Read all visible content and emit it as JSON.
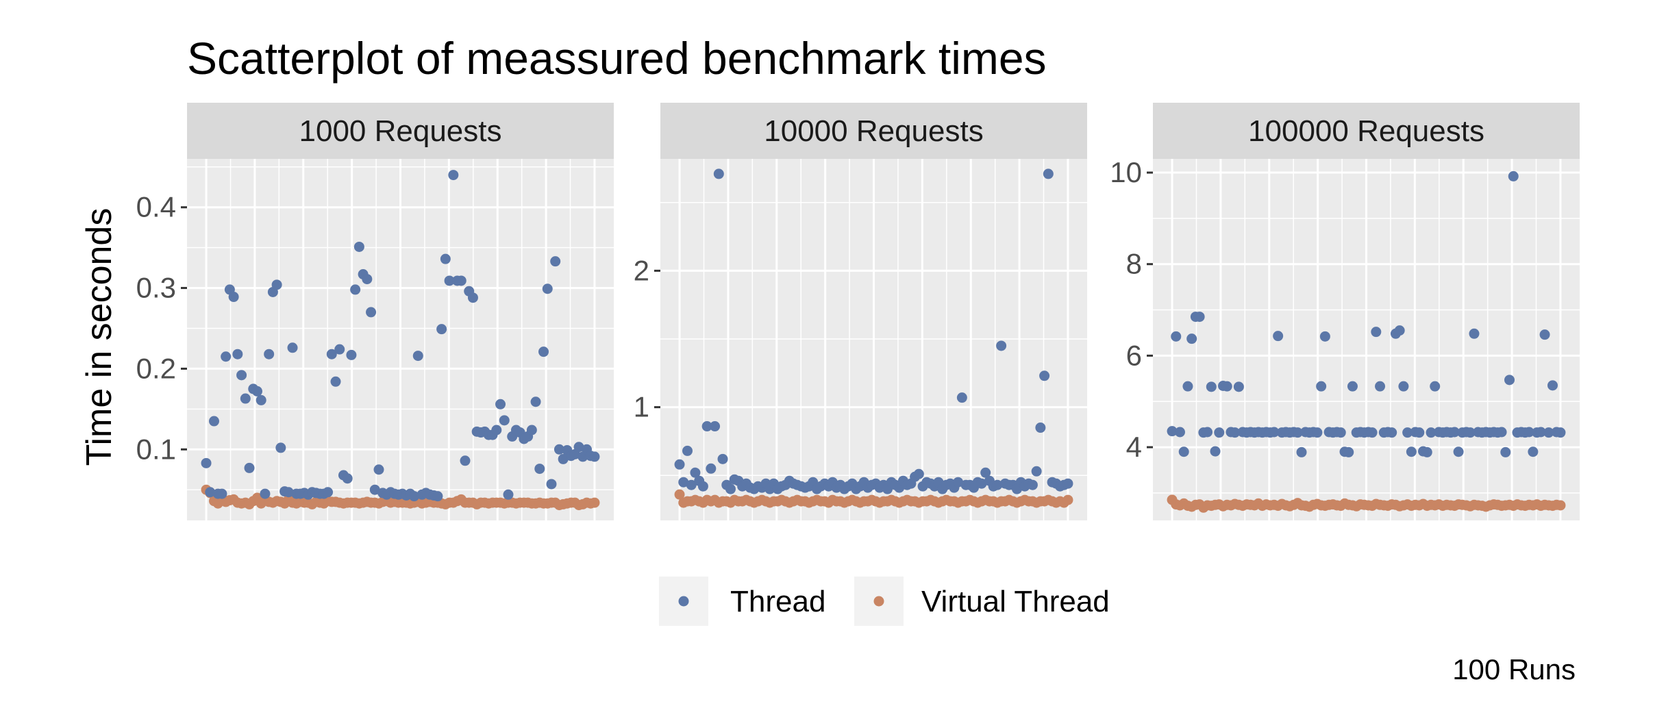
{
  "chart_data": {
    "type": "scatter",
    "title": "Scatterplot of meassured benchmark times",
    "ylabel": "Time in seconds",
    "xlabel": "",
    "caption": "100 Runs",
    "legend": {
      "placement": "bottom",
      "entries": [
        {
          "name": "Thread",
          "color": "#5b77a8"
        },
        {
          "name": "Virtual Thread",
          "color": "#c98563"
        }
      ]
    },
    "panels": [
      {
        "label": "1000 Requests",
        "ylim": [
          0.012,
          0.46
        ],
        "yticks": [
          0.1,
          0.2,
          0.3,
          0.4
        ],
        "ytick_labels": [
          "0.1",
          "0.2",
          "0.3",
          "0.4"
        ],
        "thread": [
          0.083,
          0.047,
          0.135,
          0.045,
          0.045,
          0.215,
          0.298,
          0.289,
          0.218,
          0.192,
          0.163,
          0.077,
          0.175,
          0.172,
          0.161,
          0.045,
          0.218,
          0.295,
          0.304,
          0.102,
          0.048,
          0.047,
          0.226,
          0.045,
          0.045,
          0.046,
          0.044,
          0.047,
          0.046,
          0.045,
          0.045,
          0.047,
          0.218,
          0.184,
          0.224,
          0.068,
          0.064,
          0.217,
          0.298,
          0.351,
          0.317,
          0.311,
          0.27,
          0.05,
          0.075,
          0.046,
          0.044,
          0.047,
          0.045,
          0.044,
          0.045,
          0.043,
          0.045,
          0.042,
          0.216,
          0.044,
          0.046,
          0.044,
          0.043,
          0.042,
          0.249,
          0.336,
          0.309,
          0.44,
          0.309,
          0.309,
          0.086,
          0.296,
          0.288,
          0.122,
          0.121,
          0.122,
          0.118,
          0.118,
          0.124,
          0.156,
          0.136,
          0.044,
          0.116,
          0.124,
          0.121,
          0.113,
          0.116,
          0.124,
          0.159,
          0.076,
          0.221,
          0.299,
          0.057,
          0.333,
          0.1,
          0.088,
          0.099,
          0.092,
          0.094,
          0.103,
          0.091,
          0.1,
          0.092,
          0.091
        ],
        "virtual": [
          0.05,
          0.046,
          0.036,
          0.033,
          0.04,
          0.035,
          0.037,
          0.038,
          0.034,
          0.033,
          0.034,
          0.032,
          0.036,
          0.04,
          0.033,
          0.038,
          0.035,
          0.034,
          0.036,
          0.035,
          0.033,
          0.038,
          0.034,
          0.033,
          0.035,
          0.034,
          0.034,
          0.032,
          0.035,
          0.034,
          0.033,
          0.036,
          0.035,
          0.035,
          0.034,
          0.033,
          0.034,
          0.034,
          0.034,
          0.033,
          0.034,
          0.035,
          0.034,
          0.034,
          0.033,
          0.035,
          0.036,
          0.034,
          0.035,
          0.034,
          0.034,
          0.034,
          0.033,
          0.034,
          0.035,
          0.033,
          0.034,
          0.035,
          0.034,
          0.034,
          0.033,
          0.032,
          0.034,
          0.034,
          0.036,
          0.038,
          0.034,
          0.034,
          0.034,
          0.032,
          0.034,
          0.034,
          0.033,
          0.034,
          0.034,
          0.034,
          0.033,
          0.034,
          0.034,
          0.033,
          0.034,
          0.034,
          0.034,
          0.033,
          0.033,
          0.034,
          0.033,
          0.033,
          0.034,
          0.034,
          0.031,
          0.032,
          0.033,
          0.034,
          0.034,
          0.031,
          0.032,
          0.034,
          0.033,
          0.034
        ]
      },
      {
        "label": "10000 Requests",
        "ylim": [
          0.17,
          2.82
        ],
        "yticks": [
          1,
          2
        ],
        "ytick_labels": [
          "1",
          "2"
        ],
        "thread": [
          0.58,
          0.45,
          0.68,
          0.43,
          0.52,
          0.46,
          0.42,
          0.86,
          0.55,
          0.86,
          2.71,
          0.62,
          0.43,
          0.4,
          0.47,
          0.46,
          0.42,
          0.44,
          0.41,
          0.4,
          0.42,
          0.41,
          0.44,
          0.4,
          0.44,
          0.4,
          0.42,
          0.43,
          0.46,
          0.44,
          0.43,
          0.42,
          0.41,
          0.42,
          0.45,
          0.4,
          0.42,
          0.44,
          0.42,
          0.45,
          0.41,
          0.43,
          0.4,
          0.42,
          0.44,
          0.4,
          0.42,
          0.45,
          0.41,
          0.43,
          0.44,
          0.41,
          0.43,
          0.4,
          0.45,
          0.43,
          0.41,
          0.46,
          0.43,
          0.44,
          0.49,
          0.51,
          0.42,
          0.45,
          0.44,
          0.42,
          0.45,
          0.4,
          0.43,
          0.44,
          0.41,
          0.45,
          1.07,
          0.43,
          0.43,
          0.41,
          0.45,
          0.44,
          0.52,
          0.46,
          0.42,
          0.43,
          1.45,
          0.44,
          0.43,
          0.43,
          0.4,
          0.45,
          0.42,
          0.44,
          0.43,
          0.53,
          0.85,
          1.23,
          2.71,
          0.45,
          0.44,
          0.42,
          0.43,
          0.44
        ],
        "virtual": [
          0.36,
          0.3,
          0.31,
          0.31,
          0.32,
          0.31,
          0.3,
          0.32,
          0.31,
          0.32,
          0.3,
          0.31,
          0.31,
          0.3,
          0.32,
          0.31,
          0.31,
          0.32,
          0.31,
          0.3,
          0.31,
          0.32,
          0.31,
          0.3,
          0.31,
          0.31,
          0.32,
          0.31,
          0.3,
          0.31,
          0.32,
          0.31,
          0.31,
          0.3,
          0.31,
          0.32,
          0.31,
          0.31,
          0.3,
          0.32,
          0.31,
          0.31,
          0.3,
          0.31,
          0.32,
          0.31,
          0.3,
          0.31,
          0.31,
          0.32,
          0.31,
          0.3,
          0.31,
          0.31,
          0.32,
          0.31,
          0.3,
          0.31,
          0.32,
          0.31,
          0.31,
          0.3,
          0.31,
          0.31,
          0.32,
          0.31,
          0.3,
          0.31,
          0.32,
          0.31,
          0.31,
          0.3,
          0.31,
          0.31,
          0.32,
          0.31,
          0.3,
          0.31,
          0.32,
          0.31,
          0.31,
          0.3,
          0.31,
          0.31,
          0.32,
          0.31,
          0.3,
          0.31,
          0.32,
          0.31,
          0.31,
          0.3,
          0.31,
          0.31,
          0.32,
          0.31,
          0.3,
          0.31,
          0.3,
          0.32
        ]
      },
      {
        "label": "100000 Requests",
        "ylim": [
          2.4,
          10.3
        ],
        "yticks": [
          4,
          6,
          8,
          10
        ],
        "ytick_labels": [
          "4",
          "6",
          "8",
          "10"
        ],
        "thread": [
          4.35,
          6.42,
          4.33,
          3.9,
          5.33,
          6.37,
          6.85,
          6.85,
          4.32,
          4.33,
          5.32,
          3.91,
          4.32,
          5.34,
          5.33,
          4.33,
          4.32,
          5.32,
          4.33,
          4.32,
          4.33,
          4.32,
          4.33,
          4.32,
          4.33,
          4.32,
          4.33,
          6.43,
          4.32,
          4.33,
          4.32,
          4.33,
          4.32,
          3.89,
          4.33,
          4.32,
          4.33,
          4.32,
          5.33,
          6.42,
          4.33,
          4.32,
          4.33,
          4.32,
          3.9,
          3.89,
          5.33,
          4.32,
          4.33,
          4.32,
          4.33,
          4.32,
          6.52,
          5.33,
          4.32,
          4.33,
          4.32,
          6.48,
          6.55,
          5.33,
          4.32,
          3.9,
          4.33,
          4.32,
          3.91,
          3.89,
          4.32,
          5.33,
          4.33,
          4.32,
          4.33,
          4.32,
          4.33,
          3.9,
          4.32,
          4.33,
          4.32,
          6.48,
          4.33,
          4.32,
          4.33,
          4.32,
          4.33,
          4.32,
          4.33,
          3.89,
          5.47,
          9.92,
          4.32,
          4.33,
          4.32,
          4.33,
          3.9,
          4.32,
          4.33,
          6.46,
          4.32,
          5.35,
          4.33,
          4.32
        ],
        "virtual": [
          2.85,
          2.75,
          2.73,
          2.77,
          2.72,
          2.7,
          2.74,
          2.75,
          2.68,
          2.73,
          2.72,
          2.74,
          2.75,
          2.71,
          2.74,
          2.73,
          2.76,
          2.74,
          2.72,
          2.75,
          2.74,
          2.73,
          2.77,
          2.72,
          2.75,
          2.73,
          2.74,
          2.72,
          2.76,
          2.73,
          2.71,
          2.74,
          2.78,
          2.73,
          2.72,
          2.7,
          2.74,
          2.76,
          2.73,
          2.72,
          2.74,
          2.75,
          2.73,
          2.72,
          2.77,
          2.74,
          2.73,
          2.71,
          2.75,
          2.74,
          2.73,
          2.72,
          2.76,
          2.74,
          2.73,
          2.72,
          2.75,
          2.74,
          2.71,
          2.73,
          2.75,
          2.72,
          2.74,
          2.73,
          2.76,
          2.72,
          2.74,
          2.73,
          2.75,
          2.72,
          2.74,
          2.73,
          2.72,
          2.75,
          2.74,
          2.73,
          2.71,
          2.74,
          2.73,
          2.72,
          2.7,
          2.73,
          2.75,
          2.74,
          2.72,
          2.73,
          2.74,
          2.72,
          2.75,
          2.73,
          2.72,
          2.74,
          2.73,
          2.75,
          2.72,
          2.74,
          2.73,
          2.72,
          2.74,
          2.73
        ]
      }
    ]
  }
}
